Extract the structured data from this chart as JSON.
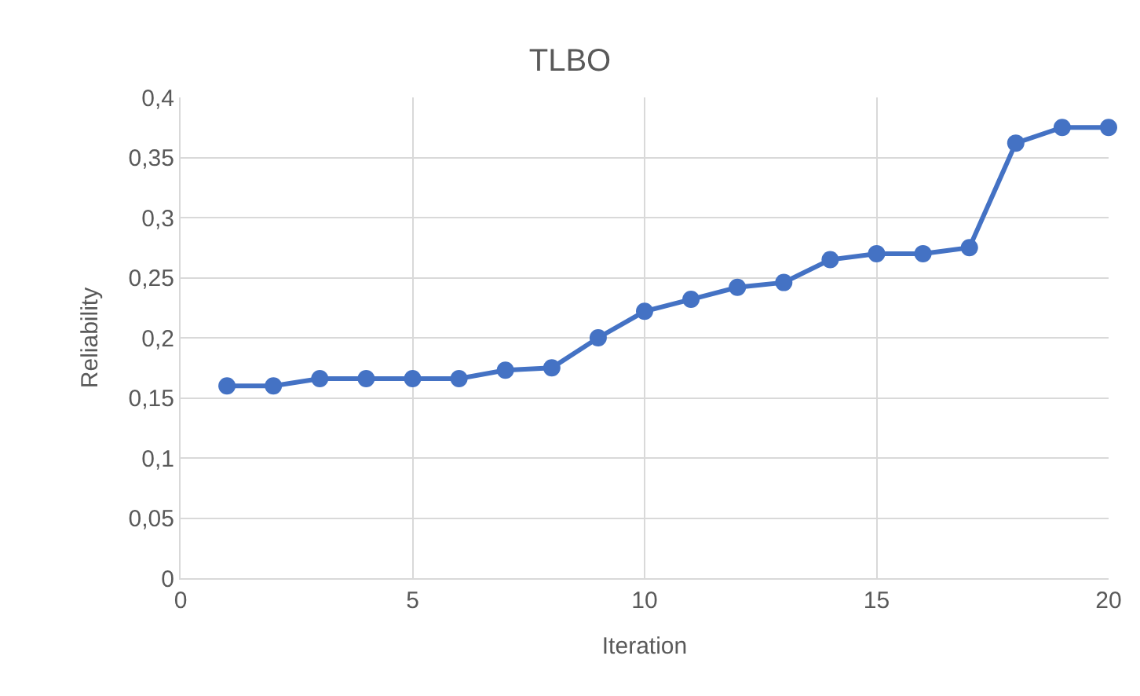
{
  "chart_data": {
    "type": "line",
    "title": "TLBO",
    "xlabel": "Iteration",
    "ylabel": "Reliability",
    "x": [
      1,
      2,
      3,
      4,
      5,
      6,
      7,
      8,
      9,
      10,
      11,
      12,
      13,
      14,
      15,
      16,
      17,
      18,
      19,
      20
    ],
    "series": [
      {
        "color": "#4472c4",
        "values": [
          0.16,
          0.16,
          0.166,
          0.166,
          0.166,
          0.166,
          0.173,
          0.175,
          0.2,
          0.222,
          0.232,
          0.242,
          0.246,
          0.265,
          0.27,
          0.27,
          0.275,
          0.362,
          0.375,
          0.375
        ]
      }
    ],
    "xlim": [
      0,
      20
    ],
    "xticks": [
      0,
      5,
      10,
      15,
      20
    ],
    "ylim": [
      0,
      0.4
    ],
    "yticks": [
      0,
      {
        "value": 0.05,
        "label": "0,05"
      },
      {
        "value": 0.1,
        "label": "0,1"
      },
      {
        "value": 0.15,
        "label": "0,15"
      },
      {
        "value": 0.2,
        "label": "0,2"
      },
      {
        "value": 0.25,
        "label": "0,25"
      },
      {
        "value": 0.3,
        "label": "0,3"
      },
      {
        "value": 0.35,
        "label": "0,35"
      },
      {
        "value": 0.4,
        "label": "0,4"
      }
    ],
    "grid": true,
    "marker": "circle",
    "line_style": "solid",
    "legend": false
  }
}
